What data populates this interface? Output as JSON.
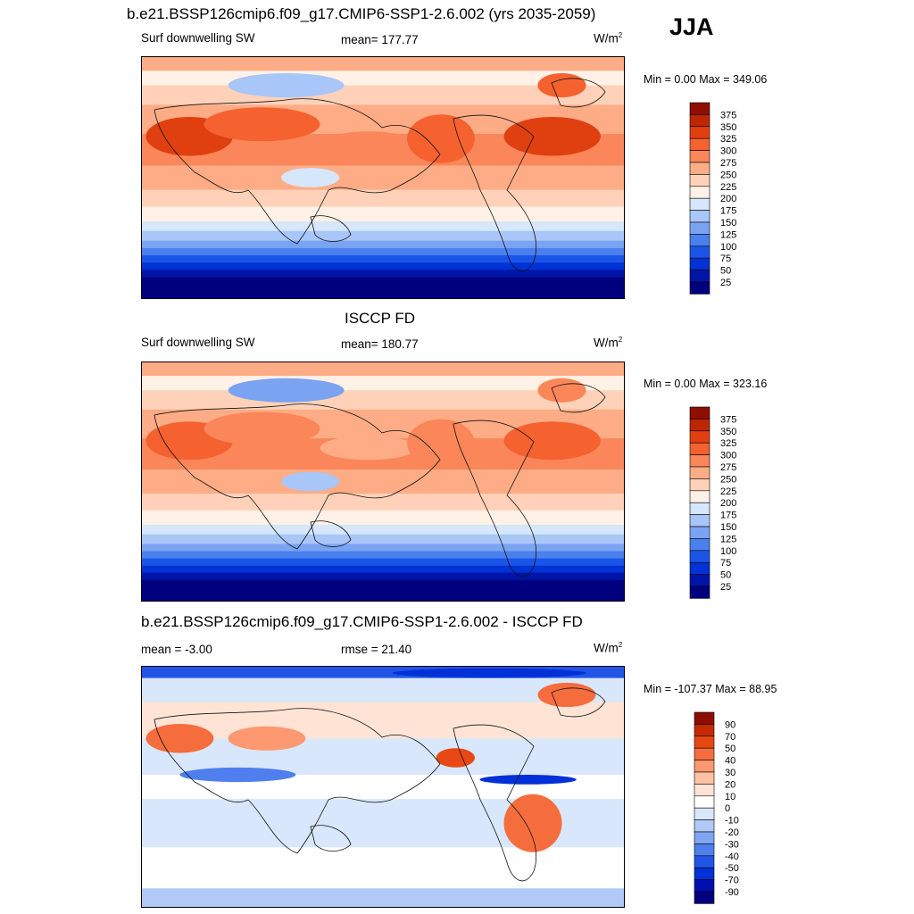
{
  "season": "JJA",
  "colors": {
    "abs_palette": [
      "#00007f",
      "#0015a8",
      "#0032d6",
      "#1a55e8",
      "#4a80ee",
      "#7aa3f2",
      "#a8c6f7",
      "#d6e6fb",
      "#fff1e6",
      "#ffd1b8",
      "#fdac86",
      "#fa8659",
      "#f5622f",
      "#e04010",
      "#bd2600",
      "#8c0f00"
    ],
    "diff_palette": [
      "#000080",
      "#0010b0",
      "#0030d8",
      "#2255e5",
      "#4f7fee",
      "#80a5f2",
      "#b0c9f6",
      "#d8e7fb",
      "#ffffff",
      "#ffe4d6",
      "#ffc1a3",
      "#fd9870",
      "#f56d3d",
      "#e74814",
      "#c42a00",
      "#8b0e00"
    ]
  },
  "chart_data": [
    {
      "type": "heatmap",
      "title": "b.e21.BSSP126cmip6.f09_g17.CMIP6-SSP1-2.6.002 (yrs 2035-2059)",
      "left_label": "Surf downwelling SW",
      "center_label": "mean= 177.77",
      "units": "W/m",
      "units_sup": "2",
      "min_max": "Min =   0.00 Max = 349.06",
      "levels": [
        "375",
        "350",
        "325",
        "300",
        "275",
        "250",
        "225",
        "200",
        "175",
        "150",
        "125",
        "100",
        "75",
        "50",
        "25"
      ],
      "xlim": [
        0,
        360
      ],
      "ylim": [
        -90,
        90
      ],
      "grid": false,
      "mean": 177.77,
      "min": 0.0,
      "max": 349.06
    },
    {
      "type": "heatmap",
      "title": "ISCCP FD",
      "left_label": "Surf downwelling SW",
      "center_label": "mean= 180.77",
      "units": "W/m",
      "units_sup": "2",
      "min_max": "Min =   0.00 Max = 323.16",
      "levels": [
        "375",
        "350",
        "325",
        "300",
        "275",
        "250",
        "225",
        "200",
        "175",
        "150",
        "125",
        "100",
        "75",
        "50",
        "25"
      ],
      "xlim": [
        0,
        360
      ],
      "ylim": [
        -90,
        90
      ],
      "grid": false,
      "mean": 180.77,
      "min": 0.0,
      "max": 323.16
    },
    {
      "type": "heatmap",
      "title": "b.e21.BSSP126cmip6.f09_g17.CMIP6-SSP1-2.6.002 - ISCCP FD",
      "left_label": "mean =  -3.00",
      "center_label": "rmse =  21.40",
      "units": "W/m",
      "units_sup": "2",
      "min_max": "Min = -107.37 Max =  88.95",
      "levels": [
        "90",
        "70",
        "50",
        "40",
        "30",
        "20",
        "10",
        "0",
        "-10",
        "-20",
        "-30",
        "-40",
        "-50",
        "-70",
        "-90"
      ],
      "xlim": [
        0,
        360
      ],
      "ylim": [
        -90,
        90
      ],
      "grid": false,
      "mean": -3.0,
      "rmse": 21.4,
      "min": -107.37,
      "max": 88.95
    }
  ]
}
